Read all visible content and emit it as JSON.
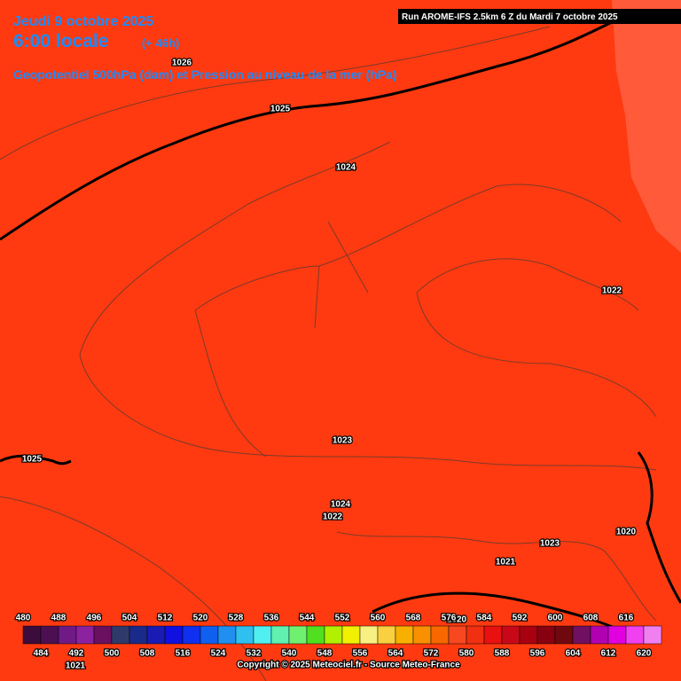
{
  "header": {
    "date": "Jeudi 9 octobre 2025",
    "time": "6:00 locale",
    "lead": "(+ 46h)",
    "subtitle": "Geopotentiel 500hPa (dam) et Pression au niveau de la mer (hPa)",
    "run": "Run AROME-IFS 2.5km 6 Z du Mardi 7 octobre 2025"
  },
  "isobar_labels": [
    1026,
    1025,
    1024,
    1022,
    1023,
    1025,
    1024,
    1022,
    1023,
    1020,
    1021,
    1020,
    1021
  ],
  "colorbar": {
    "levels": [
      480,
      484,
      488,
      492,
      496,
      500,
      504,
      508,
      512,
      516,
      520,
      524,
      528,
      532,
      536,
      540,
      544,
      548,
      552,
      556,
      560,
      564,
      568,
      572,
      576,
      580,
      584,
      588,
      592,
      596,
      600,
      604,
      608,
      612,
      616,
      620
    ],
    "colors": [
      "#3c0c3c",
      "#4c1052",
      "#701a88",
      "#8c22a0",
      "#6a1060",
      "#303a6a",
      "#1a2a8a",
      "#1a1ab4",
      "#1010e0",
      "#1030f0",
      "#1060f0",
      "#2090f0",
      "#30c0f0",
      "#50f0f0",
      "#60f0b0",
      "#70f070",
      "#50e020",
      "#b0f000",
      "#f0f000",
      "#f8f080",
      "#f8d040",
      "#f8b000",
      "#f89000",
      "#f86800",
      "#f84820",
      "#f03010",
      "#e81010",
      "#c80818",
      "#a80010",
      "#880010",
      "#700810",
      "#701060",
      "#b000b0",
      "#e000e0",
      "#f040f0",
      "#f080f0"
    ]
  },
  "footer": "Copyright © 2025 Meteociel.fr - Source Meteo-France"
}
